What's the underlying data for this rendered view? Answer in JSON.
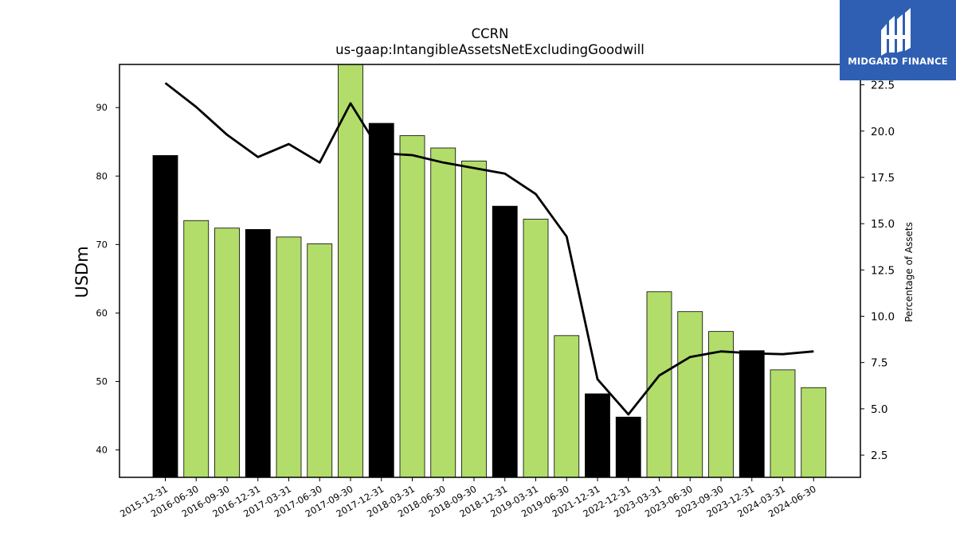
{
  "chart_data": {
    "type": "bar",
    "title": "CCRN",
    "subtitle": "us-gaap:IntangibleAssetsNetExcludingGoodwill",
    "ylabel": "USDm",
    "y2label": "Percentage of Assets",
    "categories": [
      "2015-12-31",
      "2016-06-30",
      "2016-09-30",
      "2016-12-31",
      "2017-03-31",
      "2017-06-30",
      "2017-09-30",
      "2017-12-31",
      "2018-03-31",
      "2018-06-30",
      "2018-09-30",
      "2018-12-31",
      "2019-03-31",
      "2019-06-30",
      "2021-12-31",
      "2022-12-31",
      "2023-03-31",
      "2023-06-30",
      "2023-09-30",
      "2023-12-31",
      "2024-03-31",
      "2024-06-30"
    ],
    "series": [
      {
        "type": "bar",
        "values": [
          83.0,
          73.5,
          72.4,
          72.2,
          71.1,
          70.1,
          96.3,
          87.7,
          85.9,
          84.1,
          82.2,
          75.6,
          73.7,
          56.7,
          48.2,
          44.8,
          63.1,
          60.2,
          57.3,
          54.5,
          51.7,
          49.1
        ],
        "colors": [
          "#000000",
          "#b2dd6a",
          "#b2dd6a",
          "#000000",
          "#b2dd6a",
          "#b2dd6a",
          "#b2dd6a",
          "#000000",
          "#b2dd6a",
          "#b2dd6a",
          "#b2dd6a",
          "#000000",
          "#b2dd6a",
          "#b2dd6a",
          "#000000",
          "#000000",
          "#b2dd6a",
          "#b2dd6a",
          "#b2dd6a",
          "#000000",
          "#b2dd6a",
          "#b2dd6a"
        ]
      },
      {
        "type": "line",
        "axis": "right",
        "color": "#000000",
        "values": [
          22.6,
          21.3,
          19.8,
          18.6,
          19.3,
          18.3,
          21.5,
          18.8,
          18.7,
          18.3,
          18.0,
          17.7,
          16.6,
          14.3,
          6.6,
          4.7,
          6.8,
          7.8,
          8.1,
          8.0,
          7.95,
          8.1
        ]
      }
    ],
    "ylim": [
      36.0,
      96.3
    ],
    "y2lim": [
      1.3,
      23.6
    ],
    "yticks": [
      40,
      50,
      60,
      70,
      80,
      90
    ],
    "y2ticks": [
      "2.5",
      "5.0",
      "7.5",
      "10.0",
      "12.5",
      "15.0",
      "17.5",
      "20.0",
      "22.5"
    ],
    "grid": false,
    "colors": {
      "bar_green": "#b2dd6a",
      "bar_black": "#000000",
      "line": "#000000"
    }
  },
  "logo": {
    "text": "MIDGARD FINANCE",
    "background": "#2f5fb3"
  }
}
